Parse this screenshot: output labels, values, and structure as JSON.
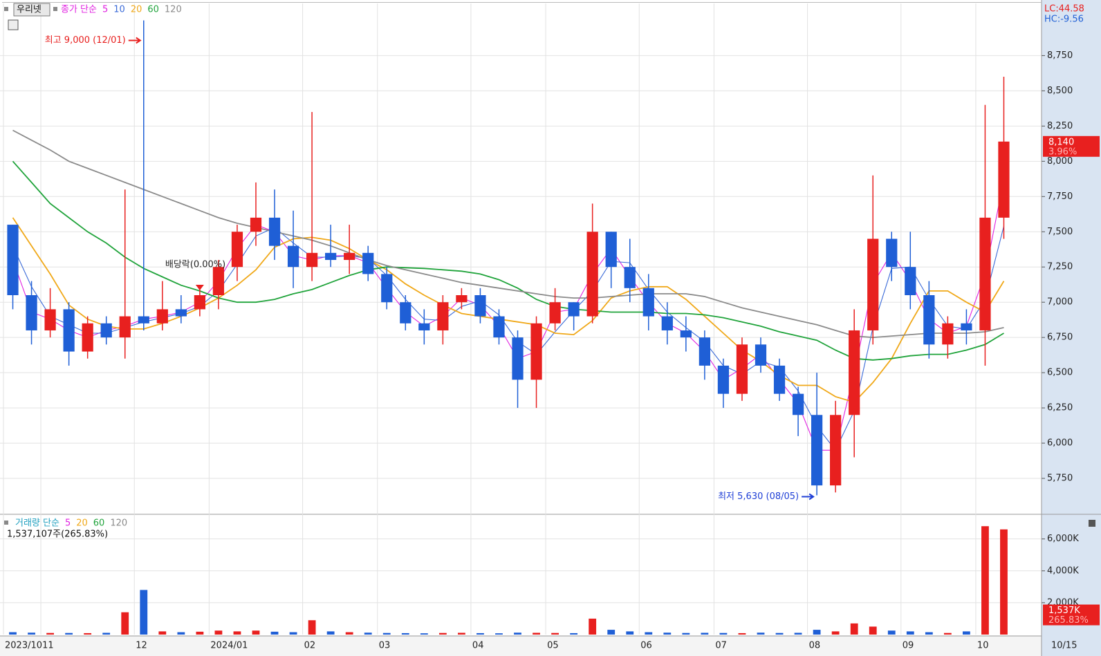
{
  "chart_data": [
    {
      "type": "candlestick",
      "title": "우리넷",
      "legend_label": "종가 단순",
      "up_color": "#e8201f",
      "down_color": "#1f5fd6",
      "categories": [
        "2023/10",
        null,
        "11",
        null,
        null,
        null,
        null,
        "12",
        null,
        null,
        null,
        "2024/01",
        null,
        null,
        null,
        null,
        "02",
        null,
        null,
        null,
        "03",
        null,
        null,
        null,
        null,
        "04",
        null,
        null,
        null,
        "05",
        null,
        null,
        null,
        null,
        "06",
        null,
        null,
        null,
        "07",
        null,
        null,
        null,
        null,
        "08",
        null,
        null,
        null,
        null,
        "09",
        null,
        null,
        null,
        "10",
        null
      ],
      "open": [
        7550,
        7050,
        6800,
        6950,
        6650,
        6850,
        6750,
        6900,
        6850,
        6950,
        6950,
        7050,
        7250,
        7500,
        7600,
        7400,
        7250,
        7350,
        7300,
        7350,
        7200,
        7000,
        6850,
        6800,
        7000,
        7050,
        6900,
        6750,
        6450,
        6850,
        7000,
        6900,
        7500,
        7250,
        7100,
        6900,
        6800,
        6750,
        6550,
        6350,
        6700,
        6550,
        6350,
        6200,
        5700,
        6200,
        6800,
        7450,
        7250,
        7050,
        6700,
        6850,
        6800,
        7600
      ],
      "high": [
        7550,
        7150,
        7100,
        7000,
        6900,
        6900,
        7800,
        9000,
        7150,
        7050,
        7100,
        7300,
        7550,
        7850,
        7800,
        7650,
        8350,
        7550,
        7550,
        7400,
        7250,
        7050,
        6950,
        7050,
        7100,
        7100,
        6950,
        6800,
        6900,
        7100,
        7000,
        7700,
        7500,
        7450,
        7200,
        7000,
        6900,
        6800,
        6600,
        6750,
        6750,
        6600,
        6400,
        6500,
        6300,
        6950,
        7900,
        7500,
        7500,
        7150,
        6900,
        6950,
        8400,
        8600
      ],
      "low": [
        6950,
        6700,
        6750,
        6550,
        6600,
        6700,
        6600,
        6800,
        6800,
        6850,
        6900,
        6950,
        7150,
        7400,
        7300,
        7100,
        7150,
        7250,
        7200,
        7150,
        6950,
        6800,
        6700,
        6700,
        6950,
        6850,
        6700,
        6250,
        6250,
        6800,
        6800,
        6850,
        7100,
        7000,
        6800,
        6700,
        6650,
        6450,
        6250,
        6300,
        6500,
        6300,
        6050,
        5630,
        5650,
        5900,
        6700,
        7150,
        6950,
        6600,
        6600,
        6700,
        6550,
        7450
      ],
      "close": [
        7050,
        6800,
        6950,
        6650,
        6850,
        6750,
        6900,
        6850,
        6950,
        6900,
        7050,
        7250,
        7500,
        7600,
        7400,
        7250,
        7350,
        7300,
        7350,
        7200,
        7000,
        6850,
        6800,
        7000,
        7050,
        6900,
        6750,
        6450,
        6850,
        7000,
        6900,
        7500,
        7250,
        7100,
        6900,
        6800,
        6750,
        6550,
        6350,
        6700,
        6550,
        6350,
        6200,
        5700,
        6200,
        6800,
        7450,
        7250,
        7050,
        6700,
        6850,
        6800,
        7600,
        8140
      ],
      "series": [
        {
          "name": "5",
          "color": "#e020e0",
          "values": [
            7300,
            6930,
            6880,
            6800,
            6750,
            6800,
            6830,
            6880,
            6900,
            6930,
            7000,
            7150,
            7380,
            7550,
            7500,
            7330,
            7300,
            7330,
            7330,
            7280,
            7100,
            6930,
            6830,
            6900,
            7030,
            6980,
            6830,
            6600,
            6650,
            6930,
            6950,
            7200,
            7380,
            7180,
            7000,
            6850,
            6780,
            6650,
            6450,
            6530,
            6630,
            6450,
            6280,
            5950,
            5950,
            6500,
            7130,
            7350,
            7150,
            6880,
            6780,
            6830,
            7200,
            7870
          ]
        },
        {
          "name": "10",
          "color": "#3a6ad8",
          "values": [
            7400,
            7110,
            6900,
            6840,
            6780,
            6780,
            6820,
            6860,
            6890,
            6920,
            6970,
            7080,
            7270,
            7470,
            7530,
            7420,
            7320,
            7320,
            7330,
            7310,
            7190,
            7020,
            6880,
            6870,
            6970,
            7010,
            6910,
            6720,
            6630,
            6790,
            6940,
            7080,
            7290,
            7280,
            7090,
            6930,
            6820,
            6720,
            6550,
            6490,
            6580,
            6540,
            6370,
            6120,
            5950,
            6230,
            6820,
            7240,
            7250,
            7020,
            6830,
            6810,
            7020,
            7540
          ]
        },
        {
          "name": "20",
          "color": "#f0a818",
          "values": [
            7600,
            7400,
            7200,
            6980,
            6880,
            6830,
            6810,
            6810,
            6850,
            6900,
            6960,
            7030,
            7120,
            7230,
            7390,
            7450,
            7460,
            7440,
            7380,
            7300,
            7230,
            7130,
            7050,
            6980,
            6920,
            6900,
            6880,
            6860,
            6840,
            6780,
            6770,
            6870,
            7030,
            7080,
            7110,
            7110,
            7020,
            6900,
            6780,
            6660,
            6580,
            6480,
            6410,
            6410,
            6330,
            6290,
            6430,
            6600,
            6850,
            7080,
            7080,
            7000,
            6930,
            7150
          ]
        },
        {
          "name": "60",
          "color": "#1fa33a",
          "values": [
            8000,
            7850,
            7700,
            7600,
            7500,
            7420,
            7320,
            7240,
            7180,
            7120,
            7080,
            7030,
            7000,
            7000,
            7020,
            7060,
            7090,
            7140,
            7190,
            7230,
            7250,
            7245,
            7240,
            7230,
            7220,
            7200,
            7160,
            7100,
            7020,
            6970,
            6950,
            6940,
            6930,
            6930,
            6930,
            6920,
            6920,
            6910,
            6890,
            6860,
            6830,
            6790,
            6760,
            6730,
            6660,
            6600,
            6590,
            6600,
            6620,
            6630,
            6630,
            6660,
            6700,
            6780
          ]
        },
        {
          "name": "120",
          "color": "#8a8a8a",
          "values": [
            8220,
            8150,
            8080,
            8000,
            7950,
            7900,
            7850,
            7800,
            7750,
            7700,
            7650,
            7600,
            7560,
            7530,
            7500,
            7470,
            7440,
            7400,
            7350,
            7300,
            7260,
            7230,
            7200,
            7170,
            7140,
            7120,
            7100,
            7080,
            7060,
            7040,
            7030,
            7030,
            7040,
            7050,
            7060,
            7060,
            7060,
            7040,
            7000,
            6960,
            6930,
            6900,
            6870,
            6840,
            6800,
            6760,
            6750,
            6760,
            6770,
            6780,
            6780,
            6780,
            6790,
            6820
          ]
        }
      ],
      "ylim": [
        5500,
        9120
      ],
      "yticks": [
        {
          "value": 5750,
          "label": "5,750"
        },
        {
          "value": 6000,
          "label": "6,000"
        },
        {
          "value": 6250,
          "label": "6,250"
        },
        {
          "value": 6500,
          "label": "6,500"
        },
        {
          "value": 6750,
          "label": "6,750"
        },
        {
          "value": 7000,
          "label": "7,000"
        },
        {
          "value": 7250,
          "label": "7,250"
        },
        {
          "value": 7500,
          "label": "7,500"
        },
        {
          "value": 7750,
          "label": "7,750"
        },
        {
          "value": 8000,
          "label": "8,000"
        },
        {
          "value": 8250,
          "label": "8,250"
        },
        {
          "value": 8500,
          "label": "8,500"
        },
        {
          "value": 8750,
          "label": "8,750"
        }
      ],
      "grid": true,
      "high_label": "최고 9,000 (12/01)",
      "low_label": "최저 5,630 (08/05)",
      "dividend_label": "배당락(0.00%)",
      "lc_label": "LC:44.58",
      "hc_label": "HC:-9.56",
      "last_price": {
        "value": 8140,
        "label": "8,140"
      },
      "last_change": "3.96%",
      "last_date": "10/15"
    },
    {
      "type": "bar",
      "legend_label": "거래량 단순",
      "ma_legend": [
        {
          "name": "5",
          "color": "#e020e0"
        },
        {
          "name": "20",
          "color": "#f0a818"
        },
        {
          "name": "60",
          "color": "#1fa33a"
        },
        {
          "name": "120",
          "color": "#8a8a8a"
        }
      ],
      "info": "1,537,107주(265.83%)",
      "values": [
        150,
        120,
        100,
        100,
        90,
        110,
        1400,
        2800,
        200,
        150,
        180,
        250,
        200,
        250,
        180,
        150,
        900,
        200,
        150,
        120,
        100,
        90,
        80,
        100,
        110,
        90,
        80,
        120,
        110,
        100,
        90,
        1000,
        300,
        200,
        150,
        120,
        100,
        110,
        100,
        90,
        120,
        100,
        110,
        300,
        200,
        700,
        500,
        250,
        200,
        150,
        100,
        200,
        6800,
        6600
      ],
      "ylim": [
        0,
        7460
      ],
      "yticks": [
        {
          "value": 2000,
          "label": "2,000K"
        },
        {
          "value": 4000,
          "label": "4,000K"
        },
        {
          "value": 6000,
          "label": "6,000K"
        }
      ],
      "last_volume": {
        "value": 1537,
        "label": "1,537K"
      },
      "last_ratio": "265.83%"
    }
  ]
}
